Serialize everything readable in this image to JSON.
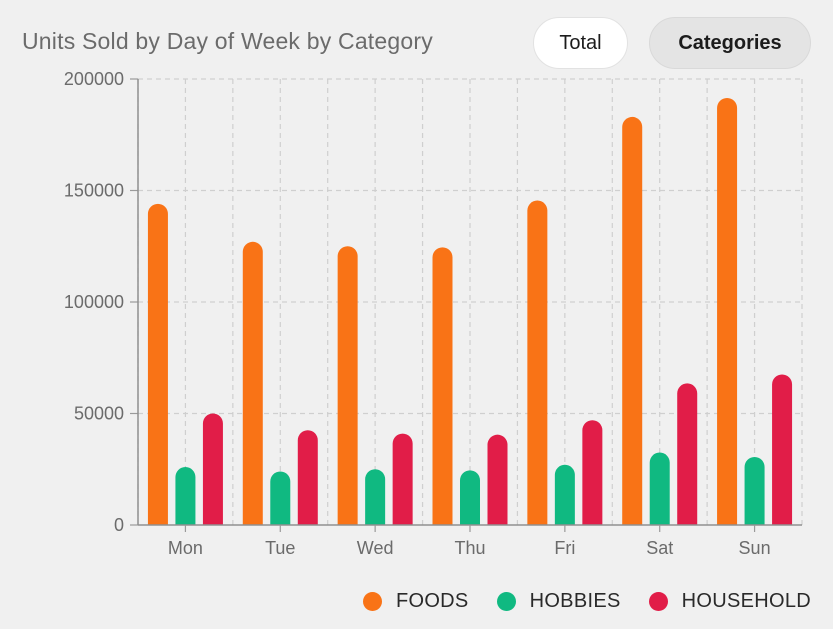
{
  "header": {
    "title": "Units Sold by Day of Week by Category",
    "toggle_total_label": "Total",
    "toggle_categories_label": "Categories",
    "active_toggle": "Categories"
  },
  "chart_data": {
    "type": "bar",
    "title": "Units Sold by Day of Week by Category",
    "xlabel": "",
    "ylabel": "",
    "categories": [
      "Mon",
      "Tue",
      "Wed",
      "Thu",
      "Fri",
      "Sat",
      "Sun"
    ],
    "series": [
      {
        "name": "FOODS",
        "color": "#f97316",
        "values": [
          144000,
          127000,
          125000,
          124500,
          145500,
          183000,
          191500
        ]
      },
      {
        "name": "HOBBIES",
        "color": "#10b981",
        "values": [
          26000,
          24000,
          25000,
          24500,
          27000,
          32500,
          30500
        ]
      },
      {
        "name": "HOUSEHOLD",
        "color": "#e11d48",
        "values": [
          50000,
          42500,
          41000,
          40500,
          47000,
          63500,
          67500
        ]
      }
    ],
    "ylim": [
      0,
      200000
    ],
    "yticks": [
      "0",
      "50000",
      "100000",
      "150000",
      "200000"
    ],
    "grid": true,
    "legend_position": "bottom-right"
  }
}
